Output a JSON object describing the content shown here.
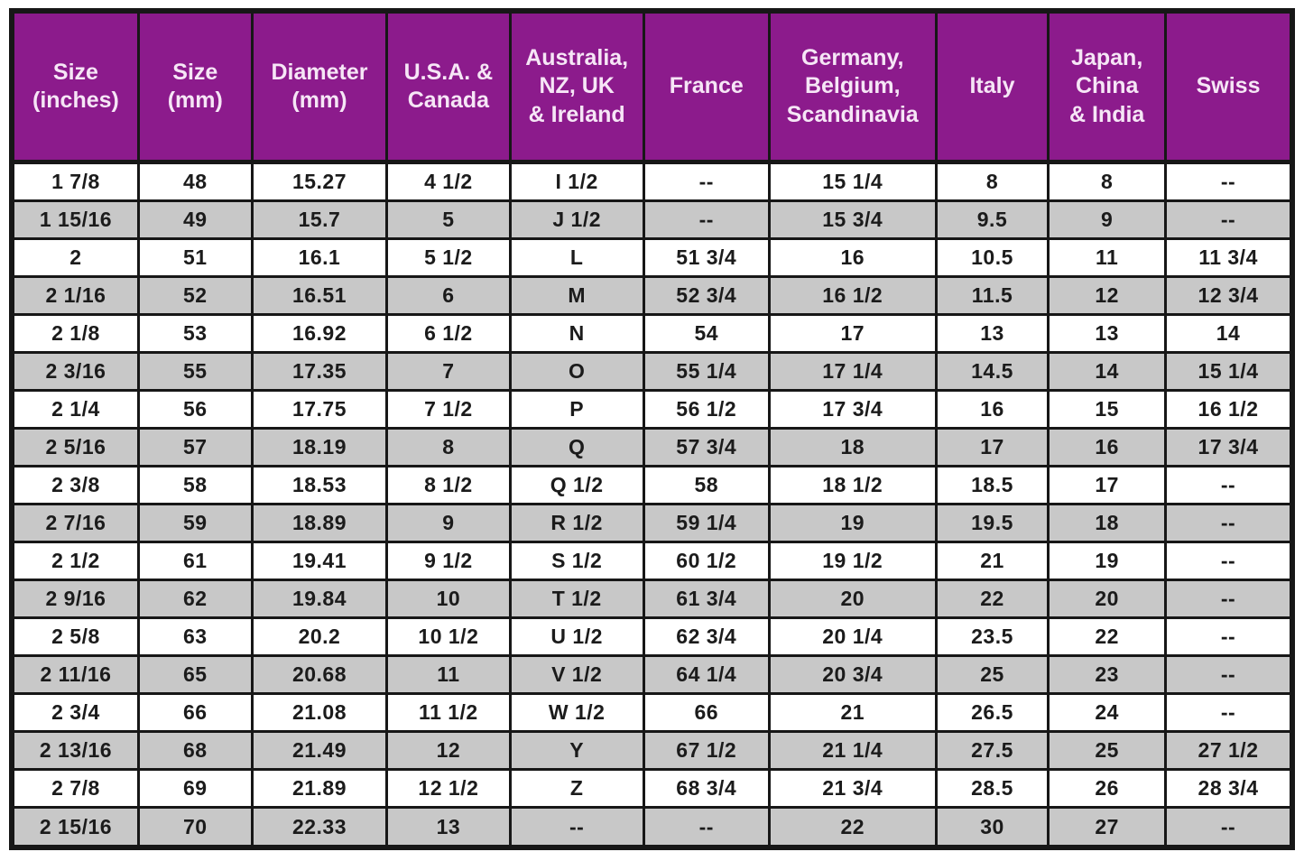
{
  "colors": {
    "header_bg": "#8C1B8C",
    "header_text": "#F6E6F6",
    "alt_row_bg": "#C8C8C8",
    "row_bg": "#FFFFFF",
    "cell_text": "#1B1B1B",
    "border": "#171717"
  },
  "chart_data": {
    "type": "table",
    "columns": [
      {
        "id": "size-inches",
        "label": "Size\n(inches)"
      },
      {
        "id": "size-mm",
        "label": "Size\n(mm)"
      },
      {
        "id": "diameter-mm",
        "label": "Diameter\n(mm)"
      },
      {
        "id": "usa-canada",
        "label": "U.S.A. &\nCanada"
      },
      {
        "id": "australia-nz-uk-ireland",
        "label": "Australia,\nNZ, UK\n& Ireland"
      },
      {
        "id": "france",
        "label": "France"
      },
      {
        "id": "germany-belgium-scandinavia",
        "label": "Germany,\nBelgium,\nScandinavia"
      },
      {
        "id": "italy",
        "label": "Italy"
      },
      {
        "id": "japan-china-india",
        "label": "Japan,\nChina\n& India"
      },
      {
        "id": "swiss",
        "label": "Swiss"
      }
    ],
    "rows": [
      [
        "1 7/8",
        "48",
        "15.27",
        "4 1/2",
        "I 1/2",
        "--",
        "15 1/4",
        "8",
        "8",
        "--"
      ],
      [
        "1 15/16",
        "49",
        "15.7",
        "5",
        "J 1/2",
        "--",
        "15 3/4",
        "9.5",
        "9",
        "--"
      ],
      [
        "2",
        "51",
        "16.1",
        "5 1/2",
        "L",
        "51 3/4",
        "16",
        "10.5",
        "11",
        "11 3/4"
      ],
      [
        "2 1/16",
        "52",
        "16.51",
        "6",
        "M",
        "52 3/4",
        "16 1/2",
        "11.5",
        "12",
        "12 3/4"
      ],
      [
        "2 1/8",
        "53",
        "16.92",
        "6 1/2",
        "N",
        "54",
        "17",
        "13",
        "13",
        "14"
      ],
      [
        "2 3/16",
        "55",
        "17.35",
        "7",
        "O",
        "55 1/4",
        "17 1/4",
        "14.5",
        "14",
        "15 1/4"
      ],
      [
        "2 1/4",
        "56",
        "17.75",
        "7 1/2",
        "P",
        "56 1/2",
        "17 3/4",
        "16",
        "15",
        "16 1/2"
      ],
      [
        "2 5/16",
        "57",
        "18.19",
        "8",
        "Q",
        "57 3/4",
        "18",
        "17",
        "16",
        "17 3/4"
      ],
      [
        "2 3/8",
        "58",
        "18.53",
        "8 1/2",
        "Q 1/2",
        "58",
        "18 1/2",
        "18.5",
        "17",
        "--"
      ],
      [
        "2 7/16",
        "59",
        "18.89",
        "9",
        "R 1/2",
        "59 1/4",
        "19",
        "19.5",
        "18",
        "--"
      ],
      [
        "2 1/2",
        "61",
        "19.41",
        "9 1/2",
        "S 1/2",
        "60 1/2",
        "19 1/2",
        "21",
        "19",
        "--"
      ],
      [
        "2 9/16",
        "62",
        "19.84",
        "10",
        "T 1/2",
        "61 3/4",
        "20",
        "22",
        "20",
        "--"
      ],
      [
        "2 5/8",
        "63",
        "20.2",
        "10 1/2",
        "U 1/2",
        "62 3/4",
        "20 1/4",
        "23.5",
        "22",
        "--"
      ],
      [
        "2 11/16",
        "65",
        "20.68",
        "11",
        "V 1/2",
        "64 1/4",
        "20 3/4",
        "25",
        "23",
        "--"
      ],
      [
        "2 3/4",
        "66",
        "21.08",
        "11 1/2",
        "W 1/2",
        "66",
        "21",
        "26.5",
        "24",
        "--"
      ],
      [
        "2 13/16",
        "68",
        "21.49",
        "12",
        "Y",
        "67 1/2",
        "21 1/4",
        "27.5",
        "25",
        "27 1/2"
      ],
      [
        "2 7/8",
        "69",
        "21.89",
        "12 1/2",
        "Z",
        "68 3/4",
        "21 3/4",
        "28.5",
        "26",
        "28 3/4"
      ],
      [
        "2 15/16",
        "70",
        "22.33",
        "13",
        "--",
        "--",
        "22",
        "30",
        "27",
        "--"
      ]
    ]
  }
}
